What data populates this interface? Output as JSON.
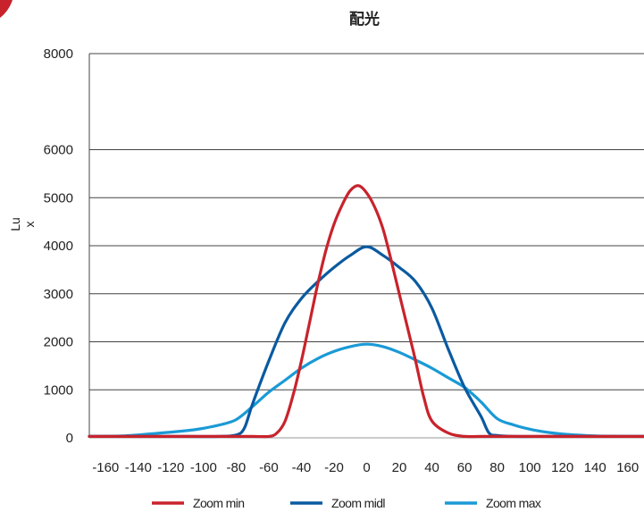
{
  "chart_data": {
    "type": "line",
    "title": "配光",
    "ylabel_line1": "Lu",
    "ylabel_line2": "x",
    "xlabel": "",
    "xlim": [
      -170,
      170
    ],
    "ylim": [
      0,
      8000
    ],
    "x_ticks": [
      -160,
      -140,
      -120,
      -100,
      -80,
      -60,
      -40,
      -20,
      0,
      20,
      40,
      60,
      80,
      100,
      120,
      140,
      160
    ],
    "x_tick_labels": [
      "-160",
      "-140",
      "-120",
      "-100",
      "-80",
      "-60",
      "-40",
      "-20",
      "0",
      "20",
      "40",
      "60",
      "80",
      "100",
      "120",
      "140",
      "160"
    ],
    "y_ticks": [
      0,
      1000,
      2000,
      3000,
      4000,
      5000,
      6000,
      8000
    ],
    "y_tick_labels": [
      "0",
      "1000",
      "2000",
      "3000",
      "4000",
      "5000",
      "6000",
      "8000"
    ],
    "grid": "horizontal",
    "legend_position": "bottom",
    "series": [
      {
        "name": "Zoom min",
        "color": "#c8232c",
        "x": [
          -170,
          -150,
          -130,
          -110,
          -90,
          -70,
          -60,
          -55,
          -50,
          -45,
          -40,
          -35,
          -30,
          -25,
          -20,
          -15,
          -10,
          -5,
          0,
          5,
          10,
          15,
          20,
          25,
          30,
          35,
          40,
          50,
          60,
          70,
          80,
          100,
          120,
          140,
          160,
          170
        ],
        "y": [
          30,
          30,
          30,
          30,
          30,
          30,
          30,
          100,
          350,
          900,
          1600,
          2400,
          3200,
          3900,
          4450,
          4850,
          5150,
          5250,
          5100,
          4800,
          4350,
          3700,
          3000,
          2300,
          1600,
          850,
          350,
          100,
          30,
          30,
          30,
          30,
          30,
          30,
          30,
          30
        ]
      },
      {
        "name": "Zoom midl",
        "color": "#0a5aa0",
        "x": [
          -170,
          -150,
          -130,
          -110,
          -90,
          -80,
          -75,
          -70,
          -60,
          -50,
          -40,
          -30,
          -20,
          -10,
          0,
          10,
          20,
          30,
          40,
          50,
          60,
          70,
          75,
          80,
          90,
          110,
          130,
          150,
          170
        ],
        "y": [
          30,
          30,
          30,
          30,
          30,
          60,
          200,
          700,
          1600,
          2400,
          2900,
          3250,
          3550,
          3800,
          3980,
          3800,
          3550,
          3250,
          2700,
          1850,
          1050,
          450,
          100,
          50,
          30,
          30,
          30,
          30,
          30
        ]
      },
      {
        "name": "Zoom max",
        "color": "#1a9ad6",
        "x": [
          -170,
          -150,
          -130,
          -110,
          -100,
          -90,
          -80,
          -70,
          -60,
          -50,
          -40,
          -30,
          -20,
          -10,
          0,
          10,
          20,
          30,
          40,
          50,
          60,
          70,
          80,
          90,
          100,
          110,
          120,
          140,
          160,
          170
        ],
        "y": [
          30,
          40,
          90,
          150,
          200,
          270,
          380,
          650,
          950,
          1200,
          1450,
          1650,
          1800,
          1900,
          1950,
          1900,
          1780,
          1620,
          1450,
          1250,
          1050,
          750,
          400,
          270,
          180,
          120,
          80,
          40,
          30,
          30
        ]
      }
    ]
  }
}
